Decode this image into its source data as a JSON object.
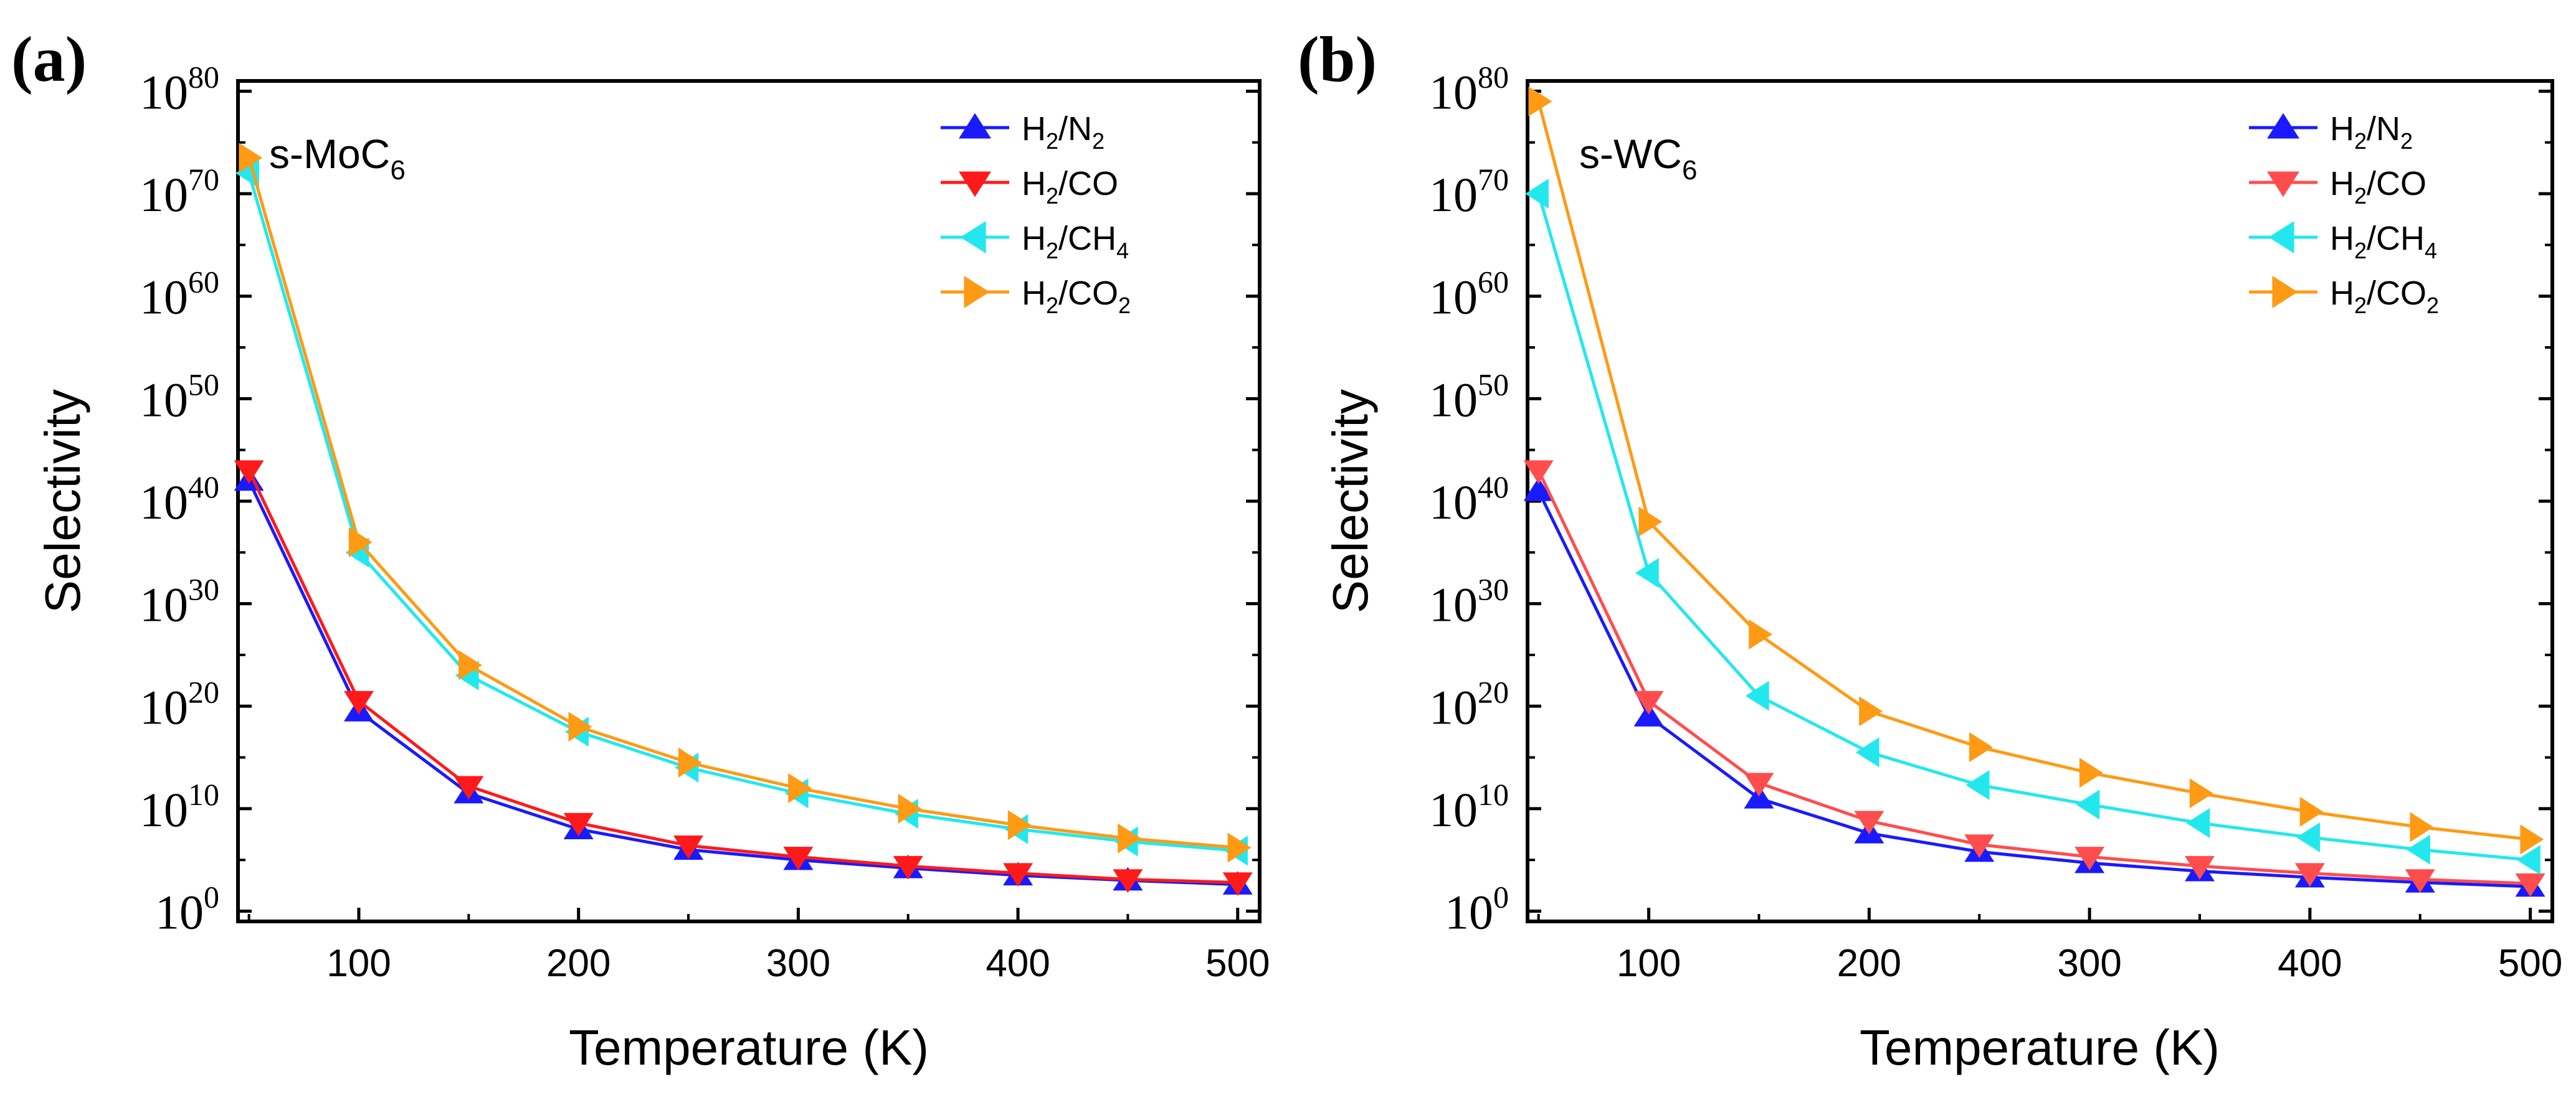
{
  "figure": {
    "colors": {
      "h2_n2": "#1a1aff",
      "h2_co_a": "#ff1a1a",
      "h2_co_b": "#ff4d4d",
      "h2_ch4": "#22e8ee",
      "h2_co2": "#ff9a14",
      "axis": "#000000"
    }
  },
  "chart_data": [
    {
      "panel": "(a)",
      "type": "line",
      "scale_y": "log10",
      "title": "",
      "inset_label_main": "s-MoC",
      "inset_label_sub": "6",
      "xlabel": "Temperature (K)",
      "ylabel": "Selectivity",
      "xlim": [
        45,
        510
      ],
      "ylim_exponent": [
        -1,
        81
      ],
      "x_ticks": [
        100,
        200,
        300,
        400,
        500
      ],
      "y_tick_base": "10",
      "y_tick_exponents": [
        "0",
        "10",
        "20",
        "30",
        "40",
        "50",
        "60",
        "70",
        "80"
      ],
      "legend_position": "top-right",
      "x": [
        50,
        100,
        150,
        200,
        250,
        300,
        350,
        400,
        450,
        500
      ],
      "series": [
        {
          "name": "H2/N2",
          "legend_parts": [
            "H",
            "2",
            "/N",
            "2"
          ],
          "marker": "triangle-up",
          "color_key": "h2_n2",
          "log10_values": [
            42,
            19.5,
            11.5,
            8,
            6,
            5,
            4.2,
            3.5,
            3,
            2.6
          ]
        },
        {
          "name": "H2/CO",
          "legend_parts": [
            "H",
            "2",
            "/CO",
            ""
          ],
          "marker": "triangle-down",
          "color_key": "h2_co_a",
          "log10_values": [
            43,
            20.5,
            12.2,
            8.6,
            6.4,
            5.3,
            4.4,
            3.7,
            3.1,
            2.8
          ]
        },
        {
          "name": "H2/CH4",
          "legend_parts": [
            "H",
            "2",
            "/CH",
            "4"
          ],
          "marker": "triangle-left",
          "color_key": "h2_ch4",
          "log10_values": [
            72,
            35,
            23,
            17.5,
            14,
            11.5,
            9.5,
            8,
            6.8,
            5.9
          ]
        },
        {
          "name": "H2/CO2",
          "legend_parts": [
            "H",
            "2",
            "/CO",
            "2"
          ],
          "marker": "triangle-right",
          "color_key": "h2_co2",
          "log10_values": [
            73.5,
            36,
            24,
            18,
            14.5,
            12,
            10,
            8.4,
            7.1,
            6.2
          ]
        }
      ]
    },
    {
      "panel": "(b)",
      "type": "line",
      "scale_y": "log10",
      "title": "",
      "inset_label_main": "s-WC",
      "inset_label_sub": "6",
      "xlabel": "Temperature (K)",
      "ylabel": "Selectivity",
      "xlim": [
        45,
        510
      ],
      "ylim_exponent": [
        -1,
        81
      ],
      "x_ticks": [
        100,
        200,
        300,
        400,
        500
      ],
      "y_tick_base": "10",
      "y_tick_exponents": [
        "0",
        "10",
        "20",
        "30",
        "40",
        "50",
        "60",
        "70",
        "80"
      ],
      "legend_position": "top-right",
      "x": [
        50,
        100,
        150,
        200,
        250,
        300,
        350,
        400,
        450,
        500
      ],
      "series": [
        {
          "name": "H2/N2",
          "legend_parts": [
            "H",
            "2",
            "/N",
            "2"
          ],
          "marker": "triangle-up",
          "color_key": "h2_n2",
          "log10_values": [
            41,
            19,
            11,
            7.6,
            5.8,
            4.7,
            3.9,
            3.3,
            2.8,
            2.4
          ]
        },
        {
          "name": "H2/CO",
          "legend_parts": [
            "H",
            "2",
            "/CO",
            ""
          ],
          "marker": "triangle-down",
          "color_key": "h2_co_b",
          "log10_values": [
            43,
            20.5,
            12.5,
            8.8,
            6.5,
            5.3,
            4.4,
            3.7,
            3.1,
            2.7
          ]
        },
        {
          "name": "H2/CH4",
          "legend_parts": [
            "H",
            "2",
            "/CH",
            "4"
          ],
          "marker": "triangle-left",
          "color_key": "h2_ch4",
          "log10_values": [
            70,
            33,
            21,
            15.5,
            12.3,
            10.4,
            8.6,
            7.2,
            6,
            5
          ]
        },
        {
          "name": "H2/CO2",
          "legend_parts": [
            "H",
            "2",
            "/CO",
            "2"
          ],
          "marker": "triangle-right",
          "color_key": "h2_co2",
          "log10_values": [
            79,
            38,
            27,
            19.5,
            16,
            13.5,
            11.5,
            9.7,
            8.2,
            7
          ]
        }
      ]
    }
  ]
}
